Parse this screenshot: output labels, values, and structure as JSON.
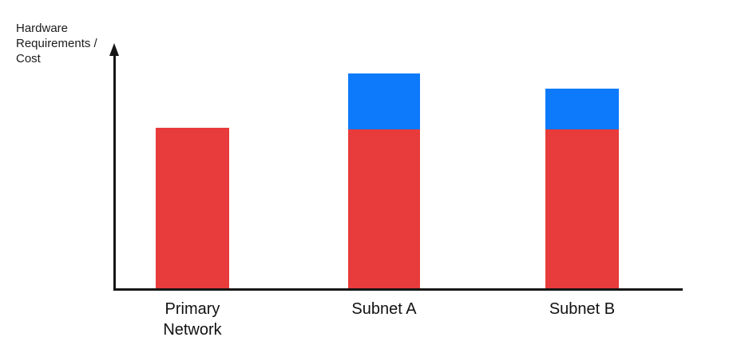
{
  "axis": {
    "y_label": "Hardware\nRequirements /\nCost"
  },
  "colors": {
    "axis_line": "#161616",
    "label_text": "#1c1c1c",
    "red_series": "#E83B3B",
    "blue_series": "#0D7AFC"
  },
  "chart_data": {
    "type": "bar",
    "stacked": true,
    "title": "",
    "xlabel": "",
    "ylabel": "Hardware Requirements / Cost",
    "categories": [
      "Primary Network",
      "Subnet A",
      "Subnet B"
    ],
    "series": [
      {
        "name": "red-base",
        "color": "#E83B3B",
        "values": [
          201,
          199,
          199
        ]
      },
      {
        "name": "blue-additional",
        "color": "#0D7AFC",
        "values": [
          0,
          70,
          51
        ]
      }
    ],
    "value_units": "relative height (axis has no numeric ticks; values estimated from pixels)",
    "ylim": [
      0,
      306
    ],
    "grid": false,
    "legend": false,
    "notes": "Y axis is an arrow with qualitative label only; red base portions are equal height across all three bars, Subnet A and Subnet B have extra blue stacked on top"
  }
}
